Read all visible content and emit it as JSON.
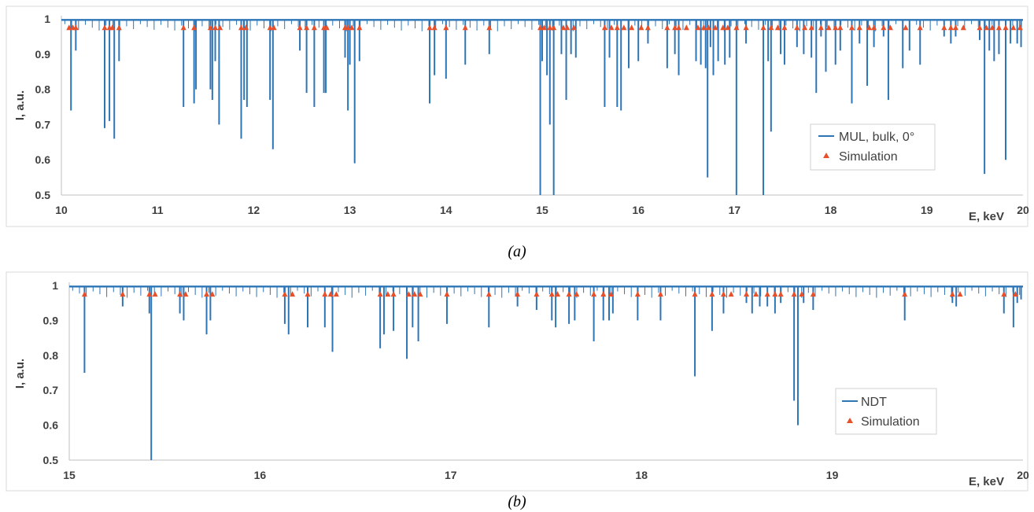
{
  "chart_data": [
    {
      "type": "line",
      "ylabel": "I, a.u.",
      "xlabel": "E, keV",
      "xlim": [
        10,
        20
      ],
      "ylim": [
        0.5,
        1
      ],
      "xticks": [
        "10",
        "11",
        "12",
        "13",
        "14",
        "15",
        "16",
        "17",
        "18",
        "19",
        "20"
      ],
      "yticks": [
        "0.5",
        "0.6",
        "0.7",
        "0.8",
        "0.9",
        "1"
      ],
      "legend": [
        "MUL, bulk, 0°",
        "Simulation"
      ],
      "legend_position": "right",
      "caption": "(a)",
      "series": [
        {
          "name": "MUL, bulk, 0°",
          "color": "#2E75B6",
          "baseline": 0.997,
          "dips": [
            [
              10.1,
              0.74
            ],
            [
              10.15,
              0.91
            ],
            [
              10.45,
              0.69
            ],
            [
              10.5,
              0.71
            ],
            [
              10.55,
              0.66
            ],
            [
              10.6,
              0.88
            ],
            [
              11.27,
              0.75
            ],
            [
              11.38,
              0.76
            ],
            [
              11.4,
              0.8
            ],
            [
              11.55,
              0.8
            ],
            [
              11.57,
              0.77
            ],
            [
              11.6,
              0.88
            ],
            [
              11.64,
              0.7
            ],
            [
              11.87,
              0.66
            ],
            [
              11.9,
              0.77
            ],
            [
              11.93,
              0.75
            ],
            [
              12.17,
              0.77
            ],
            [
              12.2,
              0.63
            ],
            [
              12.48,
              0.91
            ],
            [
              12.55,
              0.79
            ],
            [
              12.63,
              0.75
            ],
            [
              12.73,
              0.79
            ],
            [
              12.75,
              0.79
            ],
            [
              12.95,
              0.89
            ],
            [
              12.98,
              0.74
            ],
            [
              13.0,
              0.87
            ],
            [
              13.05,
              0.59
            ],
            [
              13.1,
              0.88
            ],
            [
              13.83,
              0.76
            ],
            [
              13.88,
              0.84
            ],
            [
              14.0,
              0.83
            ],
            [
              14.2,
              0.87
            ],
            [
              14.45,
              0.9
            ],
            [
              14.98,
              0.5
            ],
            [
              15.0,
              0.88
            ],
            [
              15.05,
              0.84
            ],
            [
              15.08,
              0.7
            ],
            [
              15.12,
              0.5
            ],
            [
              15.2,
              0.9
            ],
            [
              15.25,
              0.77
            ],
            [
              15.3,
              0.9
            ],
            [
              15.35,
              0.89
            ],
            [
              15.65,
              0.75
            ],
            [
              15.7,
              0.89
            ],
            [
              15.78,
              0.75
            ],
            [
              15.82,
              0.74
            ],
            [
              15.9,
              0.86
            ],
            [
              16.0,
              0.88
            ],
            [
              16.1,
              0.93
            ],
            [
              16.3,
              0.86
            ],
            [
              16.38,
              0.9
            ],
            [
              16.42,
              0.84
            ],
            [
              16.6,
              0.88
            ],
            [
              16.65,
              0.87
            ],
            [
              16.7,
              0.86
            ],
            [
              16.72,
              0.55
            ],
            [
              16.75,
              0.92
            ],
            [
              16.78,
              0.84
            ],
            [
              16.83,
              0.88
            ],
            [
              16.9,
              0.87
            ],
            [
              16.95,
              0.89
            ],
            [
              17.02,
              0.5
            ],
            [
              17.12,
              0.93
            ],
            [
              17.3,
              0.5
            ],
            [
              17.35,
              0.88
            ],
            [
              17.38,
              0.68
            ],
            [
              17.48,
              0.9
            ],
            [
              17.52,
              0.87
            ],
            [
              17.65,
              0.92
            ],
            [
              17.72,
              0.9
            ],
            [
              17.8,
              0.89
            ],
            [
              17.85,
              0.79
            ],
            [
              17.9,
              0.95
            ],
            [
              17.95,
              0.85
            ],
            [
              18.05,
              0.87
            ],
            [
              18.1,
              0.91
            ],
            [
              18.22,
              0.76
            ],
            [
              18.3,
              0.93
            ],
            [
              18.38,
              0.81
            ],
            [
              18.45,
              0.92
            ],
            [
              18.55,
              0.95
            ],
            [
              18.6,
              0.77
            ],
            [
              18.75,
              0.86
            ],
            [
              18.82,
              0.91
            ],
            [
              18.93,
              0.87
            ],
            [
              19.18,
              0.95
            ],
            [
              19.25,
              0.93
            ],
            [
              19.3,
              0.95
            ],
            [
              19.55,
              0.94
            ],
            [
              19.6,
              0.56
            ],
            [
              19.65,
              0.91
            ],
            [
              19.7,
              0.88
            ],
            [
              19.75,
              0.9
            ],
            [
              19.82,
              0.6
            ],
            [
              19.87,
              0.93
            ],
            [
              19.94,
              0.93
            ],
            [
              19.98,
              0.92
            ]
          ]
        },
        {
          "name": "Simulation",
          "color": "#E8502A",
          "y": 0.975,
          "x": [
            10.08,
            10.12,
            10.15,
            10.45,
            10.5,
            10.53,
            10.6,
            11.27,
            11.38,
            11.55,
            11.6,
            11.65,
            11.87,
            11.92,
            12.17,
            12.21,
            12.48,
            12.55,
            12.63,
            12.73,
            12.76,
            12.95,
            12.98,
            13.02,
            13.1,
            13.83,
            13.88,
            14.0,
            14.2,
            14.45,
            14.98,
            15.02,
            15.08,
            15.12,
            15.22,
            15.26,
            15.33,
            15.65,
            15.72,
            15.78,
            15.85,
            15.93,
            16.03,
            16.1,
            16.3,
            16.38,
            16.42,
            16.5,
            16.62,
            16.68,
            16.73,
            16.8,
            16.88,
            16.93,
            17.02,
            17.12,
            17.3,
            17.38,
            17.45,
            17.52,
            17.65,
            17.73,
            17.8,
            17.9,
            17.98,
            18.05,
            18.1,
            18.22,
            18.3,
            18.4,
            18.45,
            18.55,
            18.62,
            18.78,
            18.93,
            19.18,
            19.25,
            19.3,
            19.38,
            19.55,
            19.62,
            19.68,
            19.75,
            19.82,
            19.9,
            19.97
          ]
        }
      ]
    },
    {
      "type": "line",
      "ylabel": "I, a.u.",
      "xlabel": "E, keV",
      "xlim": [
        15,
        20
      ],
      "ylim": [
        0.5,
        1
      ],
      "xticks": [
        "15",
        "16",
        "17",
        "18",
        "19",
        "20"
      ],
      "yticks": [
        "0.5",
        "0.6",
        "0.7",
        "0.8",
        "0.9",
        "1"
      ],
      "legend": [
        "NDT",
        "Simulation"
      ],
      "legend_position": "right",
      "caption": "(b)",
      "series": [
        {
          "name": "NDT",
          "color": "#2E75B6",
          "baseline": 0.997,
          "dips": [
            [
              15.08,
              0.75
            ],
            [
              15.28,
              0.94
            ],
            [
              15.42,
              0.92
            ],
            [
              15.43,
              0.5
            ],
            [
              15.58,
              0.92
            ],
            [
              15.6,
              0.9
            ],
            [
              15.72,
              0.86
            ],
            [
              15.74,
              0.9
            ],
            [
              16.13,
              0.89
            ],
            [
              16.15,
              0.86
            ],
            [
              16.25,
              0.88
            ],
            [
              16.34,
              0.88
            ],
            [
              16.38,
              0.81
            ],
            [
              16.63,
              0.82
            ],
            [
              16.65,
              0.86
            ],
            [
              16.7,
              0.87
            ],
            [
              16.77,
              0.79
            ],
            [
              16.8,
              0.88
            ],
            [
              16.83,
              0.84
            ],
            [
              16.98,
              0.89
            ],
            [
              17.2,
              0.88
            ],
            [
              17.35,
              0.94
            ],
            [
              17.45,
              0.93
            ],
            [
              17.53,
              0.9
            ],
            [
              17.55,
              0.88
            ],
            [
              17.62,
              0.89
            ],
            [
              17.65,
              0.9
            ],
            [
              17.75,
              0.84
            ],
            [
              17.8,
              0.9
            ],
            [
              17.83,
              0.9
            ],
            [
              17.85,
              0.92
            ],
            [
              17.98,
              0.9
            ],
            [
              18.1,
              0.9
            ],
            [
              18.28,
              0.74
            ],
            [
              18.37,
              0.87
            ],
            [
              18.43,
              0.92
            ],
            [
              18.55,
              0.95
            ],
            [
              18.58,
              0.92
            ],
            [
              18.62,
              0.94
            ],
            [
              18.66,
              0.94
            ],
            [
              18.7,
              0.92
            ],
            [
              18.73,
              0.95
            ],
            [
              18.8,
              0.67
            ],
            [
              18.82,
              0.6
            ],
            [
              18.85,
              0.95
            ],
            [
              18.9,
              0.93
            ],
            [
              19.38,
              0.9
            ],
            [
              19.63,
              0.95
            ],
            [
              19.65,
              0.94
            ],
            [
              19.9,
              0.92
            ],
            [
              19.95,
              0.88
            ],
            [
              19.97,
              0.95
            ],
            [
              19.99,
              0.96
            ]
          ]
        },
        {
          "name": "Simulation",
          "color": "#E8502A",
          "y": 0.975,
          "x": [
            15.08,
            15.28,
            15.42,
            15.45,
            15.58,
            15.61,
            15.72,
            15.75,
            16.13,
            16.17,
            16.25,
            16.34,
            16.37,
            16.4,
            16.63,
            16.67,
            16.7,
            16.78,
            16.81,
            16.84,
            16.98,
            17.2,
            17.35,
            17.45,
            17.53,
            17.56,
            17.62,
            17.66,
            17.75,
            17.8,
            17.84,
            17.98,
            18.1,
            18.28,
            18.37,
            18.43,
            18.47,
            18.55,
            18.6,
            18.66,
            18.7,
            18.73,
            18.8,
            18.84,
            18.9,
            19.38,
            19.63,
            19.67,
            19.9,
            19.96
          ]
        }
      ]
    }
  ]
}
